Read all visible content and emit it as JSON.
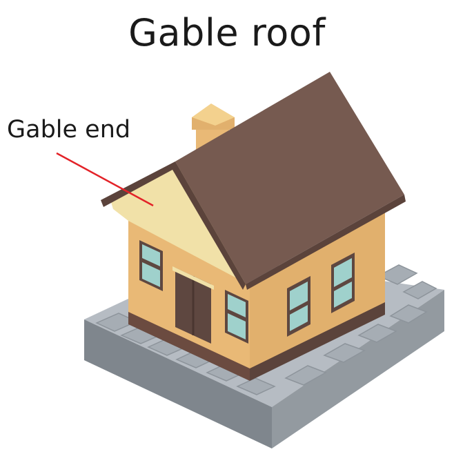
{
  "diagram": {
    "title": "Gable roof",
    "callout_label": "Gable end"
  },
  "colors": {
    "roof": "#765a50",
    "roof_edge": "#5b433b",
    "gable": "#f1e1a8",
    "wall_front": "#e9b976",
    "wall_side": "#e1b06d",
    "trim": "#6b4b40",
    "window_glass": "#9fd1cc",
    "window_frame": "#5e4740",
    "door": "#5e4740",
    "base_top": "#b6bcc3",
    "base_front": "#7f868d",
    "base_side": "#939aa0",
    "stone": "#a6adb4",
    "chimney_front": "#e9b976",
    "chimney_top": "#f3d18e",
    "leader_line": "#e32228"
  }
}
